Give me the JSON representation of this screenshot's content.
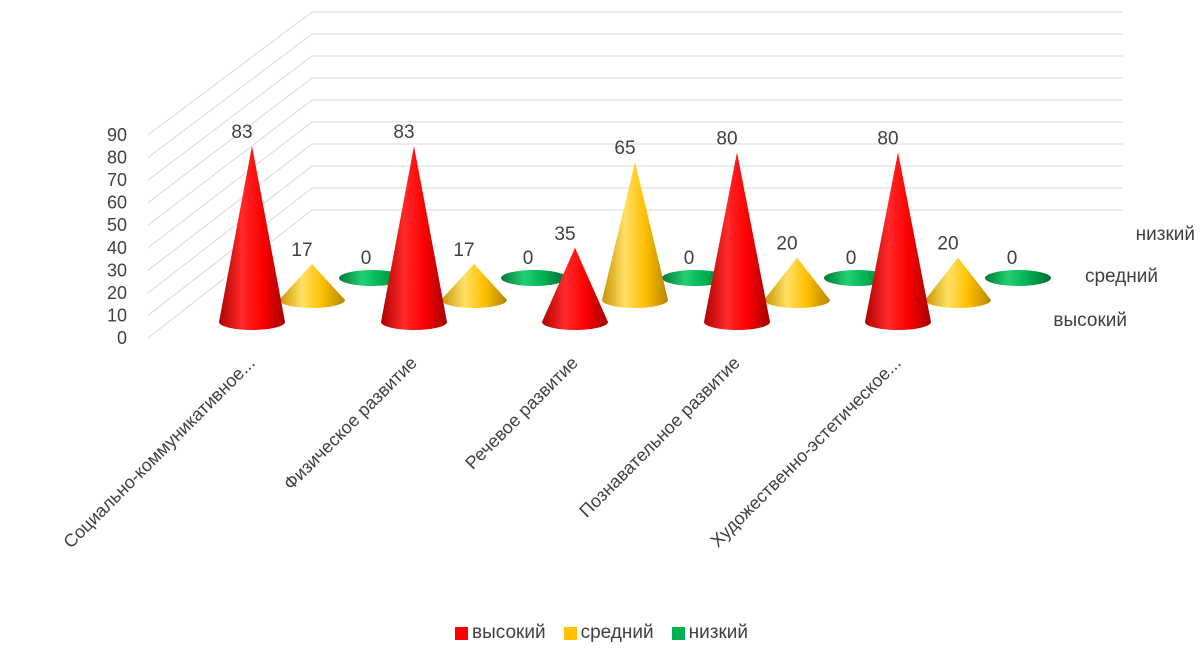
{
  "chart_data": {
    "type": "bar",
    "shape": "3d-cone",
    "categories": [
      "Социально-коммуникативное...",
      "Физическое развитие",
      "Речевое развитие",
      "Познавательное развитие",
      "Художественно-эстетическое..."
    ],
    "series": [
      {
        "name": "высокий",
        "values": [
          83,
          83,
          35,
          80,
          80
        ]
      },
      {
        "name": "средний",
        "values": [
          17,
          17,
          65,
          20,
          20
        ]
      },
      {
        "name": "низкий",
        "values": [
          0,
          0,
          0,
          0,
          0
        ]
      }
    ],
    "yticks": [
      "0",
      "10",
      "20",
      "30",
      "40",
      "50",
      "60",
      "70",
      "80",
      "90"
    ],
    "ylim": [
      0,
      90
    ],
    "grid": true,
    "legend": "bottom",
    "colors": {
      "высокий": "#ff0000",
      "средний": "#ffc000",
      "низкий": "#00b050"
    }
  }
}
